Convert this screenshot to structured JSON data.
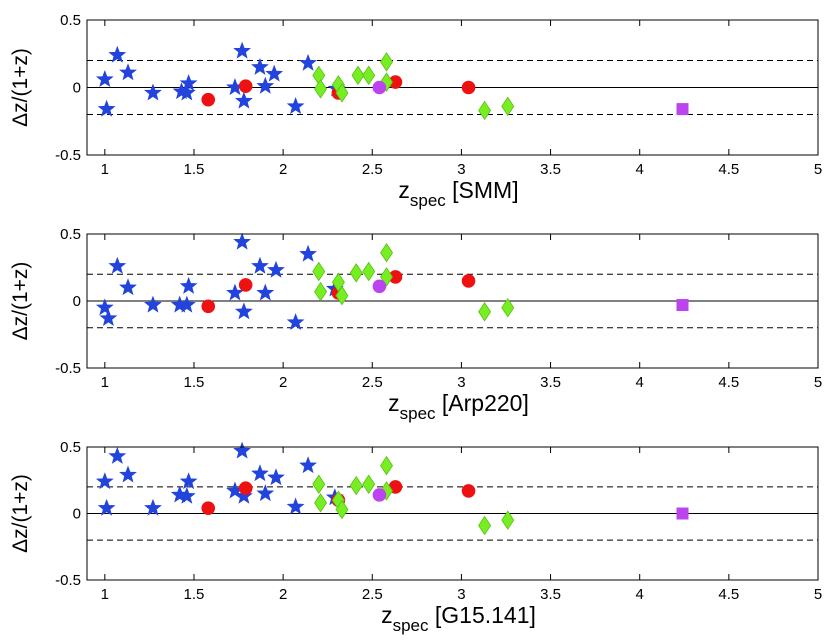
{
  "chart_data": [
    {
      "type": "scatter",
      "panel": "SMM",
      "xlabel_main": "z",
      "xlabel_sub": "spec",
      "xlabel_suffix": " [SMM]",
      "ylabel": "Δz/(1+z)",
      "xlim": [
        0.9,
        5
      ],
      "ylim": [
        -0.5,
        0.5
      ],
      "xticks": [
        "1",
        "1.5",
        "2",
        "2.5",
        "3",
        "3.5",
        "4",
        "4.5",
        "5"
      ],
      "yticks": [
        "-0.5",
        "0",
        "0.5"
      ],
      "reference_lines": {
        "solid": 0,
        "dashed": [
          0.2,
          -0.2
        ]
      },
      "series": [
        {
          "name": "stars",
          "marker": "star",
          "color": "#2244dd",
          "points": [
            [
              1.0,
              0.06
            ],
            [
              1.01,
              -0.16
            ],
            [
              1.07,
              0.24
            ],
            [
              1.13,
              0.11
            ],
            [
              1.27,
              -0.04
            ],
            [
              1.43,
              -0.03
            ],
            [
              1.46,
              -0.04
            ],
            [
              1.47,
              0.03
            ],
            [
              1.73,
              0.0
            ],
            [
              1.77,
              0.27
            ],
            [
              1.78,
              -0.1
            ],
            [
              1.87,
              0.15
            ],
            [
              1.9,
              0.01
            ],
            [
              1.95,
              0.1
            ],
            [
              2.07,
              -0.14
            ],
            [
              2.14,
              0.18
            ],
            [
              2.3,
              -0.01
            ]
          ]
        },
        {
          "name": "circles",
          "marker": "circle",
          "color": "#ee1111",
          "points": [
            [
              1.58,
              -0.09
            ],
            [
              1.79,
              0.01
            ],
            [
              2.31,
              -0.04
            ],
            [
              2.63,
              0.04
            ],
            [
              3.04,
              0.0
            ]
          ]
        },
        {
          "name": "diamonds",
          "marker": "diamond",
          "color": "#77ee22",
          "points": [
            [
              2.2,
              0.09
            ],
            [
              2.21,
              -0.01
            ],
            [
              2.31,
              0.02
            ],
            [
              2.33,
              -0.04
            ],
            [
              2.42,
              0.09
            ],
            [
              2.48,
              0.09
            ],
            [
              2.58,
              0.19
            ],
            [
              2.58,
              0.04
            ],
            [
              3.13,
              -0.17
            ],
            [
              3.26,
              -0.14
            ]
          ]
        },
        {
          "name": "purple-circle",
          "marker": "circle",
          "color": "#bb44ee",
          "points": [
            [
              2.54,
              0.0
            ]
          ]
        },
        {
          "name": "purple-square",
          "marker": "square",
          "color": "#bb44ee",
          "points": [
            [
              4.24,
              -0.16
            ]
          ]
        }
      ]
    },
    {
      "type": "scatter",
      "panel": "Arp220",
      "xlabel_main": "z",
      "xlabel_sub": "spec",
      "xlabel_suffix": " [Arp220]",
      "ylabel": "Δz/(1+z)",
      "xlim": [
        0.9,
        5
      ],
      "ylim": [
        -0.5,
        0.5
      ],
      "xticks": [
        "1",
        "1.5",
        "2",
        "2.5",
        "3",
        "3.5",
        "4",
        "4.5",
        "5"
      ],
      "yticks": [
        "-0.5",
        "0",
        "0.5"
      ],
      "reference_lines": {
        "solid": 0,
        "dashed": [
          0.2,
          -0.2
        ]
      },
      "series": [
        {
          "name": "stars",
          "marker": "star",
          "color": "#2244dd",
          "points": [
            [
              1.0,
              -0.05
            ],
            [
              1.02,
              -0.13
            ],
            [
              1.07,
              0.26
            ],
            [
              1.13,
              0.1
            ],
            [
              1.27,
              -0.03
            ],
            [
              1.42,
              -0.03
            ],
            [
              1.46,
              -0.03
            ],
            [
              1.47,
              0.11
            ],
            [
              1.73,
              0.06
            ],
            [
              1.77,
              0.44
            ],
            [
              1.78,
              -0.08
            ],
            [
              1.87,
              0.26
            ],
            [
              1.9,
              0.06
            ],
            [
              1.96,
              0.23
            ],
            [
              2.07,
              -0.16
            ],
            [
              2.14,
              0.35
            ],
            [
              2.29,
              0.09
            ]
          ]
        },
        {
          "name": "circles",
          "marker": "circle",
          "color": "#ee1111",
          "points": [
            [
              1.58,
              -0.04
            ],
            [
              1.79,
              0.12
            ],
            [
              2.31,
              0.06
            ],
            [
              2.63,
              0.18
            ],
            [
              3.04,
              0.15
            ]
          ]
        },
        {
          "name": "diamonds",
          "marker": "diamond",
          "color": "#77ee22",
          "points": [
            [
              2.2,
              0.22
            ],
            [
              2.21,
              0.07
            ],
            [
              2.31,
              0.14
            ],
            [
              2.33,
              0.04
            ],
            [
              2.41,
              0.21
            ],
            [
              2.48,
              0.22
            ],
            [
              2.58,
              0.36
            ],
            [
              2.58,
              0.18
            ],
            [
              3.13,
              -0.08
            ],
            [
              3.26,
              -0.05
            ]
          ]
        },
        {
          "name": "purple-circle",
          "marker": "circle",
          "color": "#bb44ee",
          "points": [
            [
              2.54,
              0.11
            ]
          ]
        },
        {
          "name": "purple-square",
          "marker": "square",
          "color": "#bb44ee",
          "points": [
            [
              4.24,
              -0.03
            ]
          ]
        }
      ]
    },
    {
      "type": "scatter",
      "panel": "G15.141",
      "xlabel_main": "z",
      "xlabel_sub": "spec",
      "xlabel_suffix": " [G15.141]",
      "ylabel": "Δz/(1+z)",
      "xlim": [
        0.9,
        5
      ],
      "ylim": [
        -0.5,
        0.5
      ],
      "xticks": [
        "1",
        "1.5",
        "2",
        "2.5",
        "3",
        "3.5",
        "4",
        "4.5",
        "5"
      ],
      "yticks": [
        "-0.5",
        "0",
        "0.5"
      ],
      "reference_lines": {
        "solid": 0,
        "dashed": [
          0.2,
          -0.2
        ]
      },
      "series": [
        {
          "name": "stars",
          "marker": "star",
          "color": "#2244dd",
          "points": [
            [
              1.0,
              0.24
            ],
            [
              1.01,
              0.04
            ],
            [
              1.07,
              0.43
            ],
            [
              1.13,
              0.29
            ],
            [
              1.27,
              0.04
            ],
            [
              1.42,
              0.14
            ],
            [
              1.46,
              0.13
            ],
            [
              1.47,
              0.24
            ],
            [
              1.73,
              0.17
            ],
            [
              1.77,
              0.47
            ],
            [
              1.78,
              0.13
            ],
            [
              1.87,
              0.3
            ],
            [
              1.9,
              0.15
            ],
            [
              1.96,
              0.27
            ],
            [
              2.07,
              0.05
            ],
            [
              2.14,
              0.36
            ],
            [
              2.29,
              0.12
            ]
          ]
        },
        {
          "name": "circles",
          "marker": "circle",
          "color": "#ee1111",
          "points": [
            [
              1.58,
              0.04
            ],
            [
              1.79,
              0.19
            ],
            [
              2.31,
              0.1
            ],
            [
              2.63,
              0.2
            ],
            [
              3.04,
              0.17
            ]
          ]
        },
        {
          "name": "diamonds",
          "marker": "diamond",
          "color": "#77ee22",
          "points": [
            [
              2.2,
              0.22
            ],
            [
              2.21,
              0.08
            ],
            [
              2.31,
              0.1
            ],
            [
              2.33,
              0.03
            ],
            [
              2.41,
              0.21
            ],
            [
              2.48,
              0.22
            ],
            [
              2.58,
              0.36
            ],
            [
              2.58,
              0.17
            ],
            [
              3.13,
              -0.09
            ],
            [
              3.26,
              -0.05
            ]
          ]
        },
        {
          "name": "purple-circle",
          "marker": "circle",
          "color": "#bb44ee",
          "points": [
            [
              2.54,
              0.14
            ]
          ]
        },
        {
          "name": "purple-square",
          "marker": "square",
          "color": "#bb44ee",
          "points": [
            [
              4.24,
              0.0
            ]
          ]
        }
      ]
    }
  ]
}
